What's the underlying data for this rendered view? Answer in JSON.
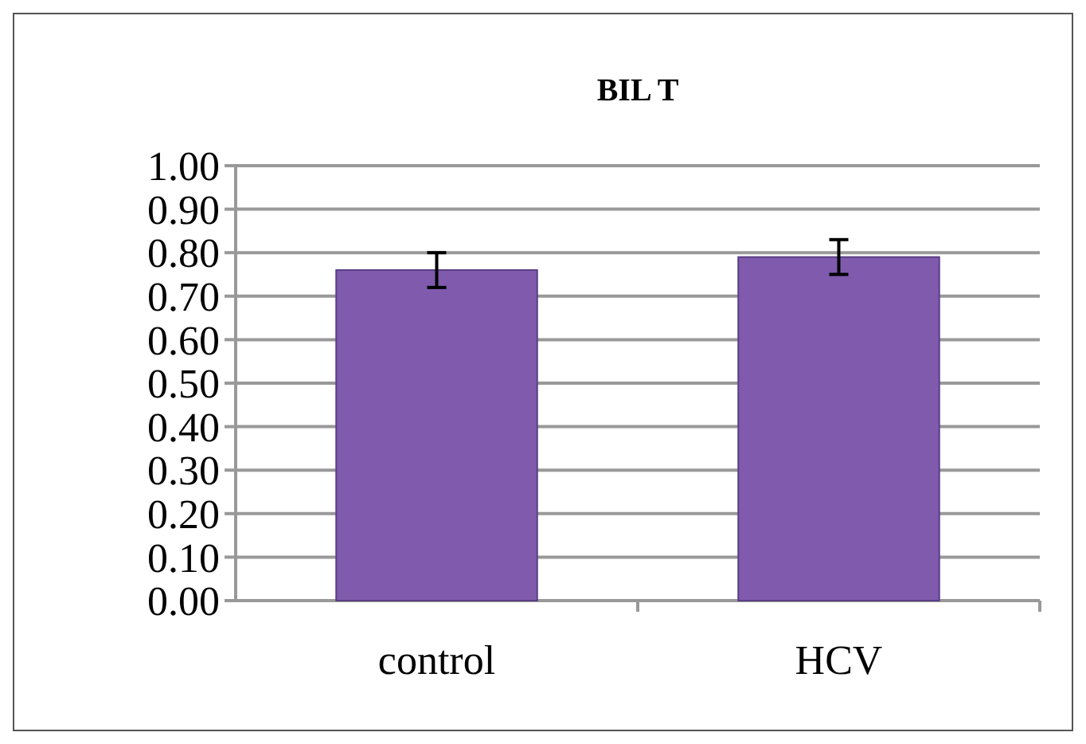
{
  "chart_data": {
    "type": "bar",
    "title": "BIL T",
    "categories": [
      "control",
      "HCV"
    ],
    "values": [
      0.76,
      0.79
    ],
    "errors": [
      0.04,
      0.04
    ],
    "color": "#7f5aad",
    "ylim": [
      0,
      1
    ],
    "yticks": [
      {
        "value": 0,
        "label": "0.00"
      },
      {
        "value": 0.1,
        "label": "0.10"
      },
      {
        "value": 0.2,
        "label": "0.20"
      },
      {
        "value": 0.3,
        "label": "0.30"
      },
      {
        "value": 0.4,
        "label": "0.40"
      },
      {
        "value": 0.5,
        "label": "0.50"
      },
      {
        "value": 0.6,
        "label": "0.60"
      },
      {
        "value": 0.7,
        "label": "0.70"
      },
      {
        "value": 0.8,
        "label": "0.80"
      },
      {
        "value": 0.9,
        "label": "0.90"
      },
      {
        "value": 1,
        "label": "1.00"
      }
    ],
    "grid": true
  }
}
